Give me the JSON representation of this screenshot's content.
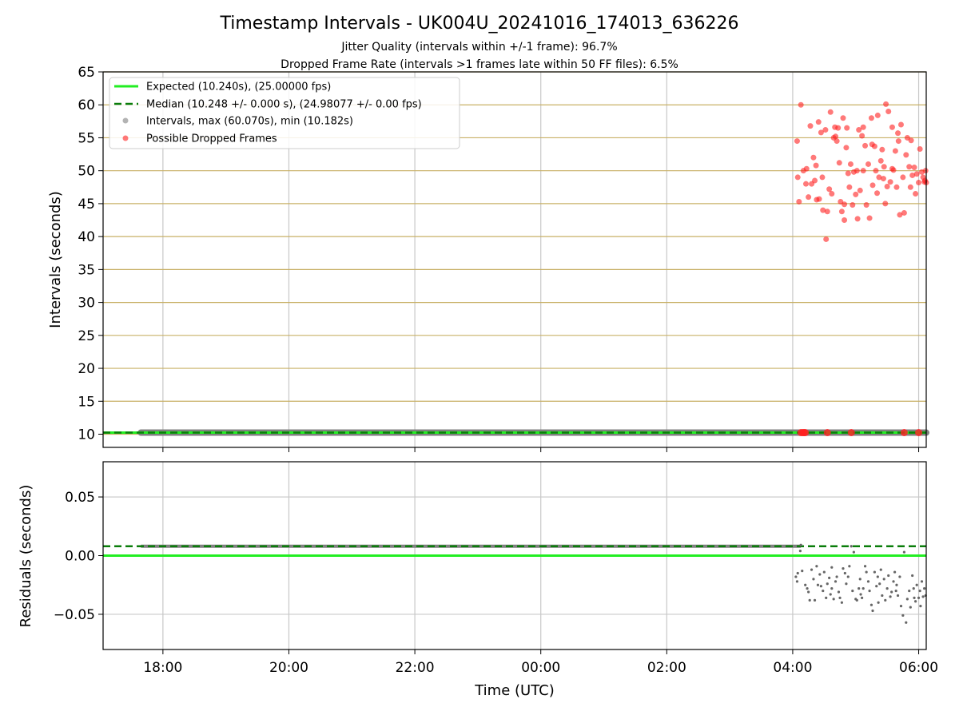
{
  "chart_data": {
    "title": "Timestamp Intervals - UK004U_20241016_174013_636226",
    "subtitle_1": "Jitter Quality (intervals within +/-1 frame): 96.7%",
    "subtitle_2": "Dropped Frame Rate (intervals >1 frames late within 50 FF files): 6.5%",
    "xlabel": "Time (UTC)",
    "x_ticks": [
      "18:00",
      "20:00",
      "22:00",
      "00:00",
      "02:00",
      "04:00",
      "06:00"
    ],
    "x_tick_hours": [
      18,
      20,
      22,
      24,
      26,
      28,
      30
    ],
    "xlim_hours": [
      17.05,
      30.12
    ],
    "colors": {
      "expected": "#22ee22",
      "median": "#0a7d0a",
      "intervals": "#808080",
      "dropped": "#ff2020",
      "hgrid_top": "#c8b066",
      "grid": "#c8c8c8"
    },
    "top": {
      "type": "scatter",
      "ylabel": "Intervals (seconds)",
      "ylim": [
        8,
        65
      ],
      "y_ticks": [
        10,
        15,
        20,
        25,
        30,
        35,
        40,
        45,
        50,
        55,
        60,
        65
      ],
      "expected": 10.24,
      "median": 10.248,
      "intervals_start_hours": 17.65,
      "intervals_end_hours": 30.12,
      "intervals_value": 10.24,
      "dropped_low_hours": [
        28.13,
        28.16,
        28.18,
        28.2,
        28.55,
        28.93,
        29.77,
        30.0
      ],
      "dropped_low_value": 10.24,
      "legend": {
        "placement": "upper-left",
        "items": [
          "Expected (10.240s), (25.00000 fps)",
          "Median (10.248 +/- 0.000 s), (24.98077 +/- 0.00 fps)",
          "Intervals, max (60.070s), min (10.182s)",
          "Possible Dropped Frames"
        ]
      },
      "dropped_points": [
        [
          28.07,
          54.5
        ],
        [
          28.08,
          49.0
        ],
        [
          28.1,
          45.3
        ],
        [
          28.13,
          60.0
        ],
        [
          28.17,
          50.0
        ],
        [
          28.22,
          50.3
        ],
        [
          28.25,
          46.0
        ],
        [
          28.28,
          56.8
        ],
        [
          28.3,
          48.0
        ],
        [
          28.33,
          52.0
        ],
        [
          28.35,
          48.5
        ],
        [
          28.37,
          50.8
        ],
        [
          28.38,
          45.6
        ],
        [
          28.42,
          45.7
        ],
        [
          28.45,
          55.8
        ],
        [
          28.47,
          49.0
        ],
        [
          28.48,
          44.0
        ],
        [
          28.52,
          56.2
        ],
        [
          28.55,
          43.8
        ],
        [
          28.58,
          47.2
        ],
        [
          28.6,
          58.9
        ],
        [
          28.62,
          46.5
        ],
        [
          28.65,
          55.0
        ],
        [
          28.67,
          56.6
        ],
        [
          28.7,
          54.5
        ],
        [
          28.72,
          56.5
        ],
        [
          28.74,
          51.2
        ],
        [
          28.76,
          45.3
        ],
        [
          28.78,
          43.8
        ],
        [
          28.8,
          58.0
        ],
        [
          28.82,
          42.5
        ],
        [
          28.85,
          53.5
        ],
        [
          28.86,
          56.5
        ],
        [
          28.88,
          49.6
        ],
        [
          28.9,
          47.5
        ],
        [
          28.92,
          51.0
        ],
        [
          28.95,
          44.8
        ],
        [
          28.97,
          49.8
        ],
        [
          29.0,
          46.4
        ],
        [
          29.02,
          50.0
        ],
        [
          29.05,
          56.2
        ],
        [
          29.07,
          47.0
        ],
        [
          29.1,
          55.3
        ],
        [
          29.12,
          50.0
        ],
        [
          29.15,
          53.8
        ],
        [
          29.17,
          44.8
        ],
        [
          29.2,
          51.0
        ],
        [
          29.22,
          42.8
        ],
        [
          29.25,
          58.0
        ],
        [
          29.27,
          47.8
        ],
        [
          29.3,
          53.7
        ],
        [
          29.32,
          50.0
        ],
        [
          29.34,
          46.6
        ],
        [
          29.37,
          49.0
        ],
        [
          29.4,
          51.5
        ],
        [
          29.42,
          53.2
        ],
        [
          29.45,
          50.6
        ],
        [
          29.47,
          45.0
        ],
        [
          29.5,
          47.6
        ],
        [
          29.52,
          59.0
        ],
        [
          29.55,
          48.3
        ],
        [
          29.58,
          56.6
        ],
        [
          29.6,
          50.1
        ],
        [
          29.63,
          53.0
        ],
        [
          29.65,
          47.5
        ],
        [
          29.68,
          54.5
        ],
        [
          29.7,
          43.3
        ],
        [
          29.72,
          57.0
        ],
        [
          29.75,
          49.0
        ],
        [
          29.77,
          43.6
        ],
        [
          29.8,
          52.4
        ],
        [
          29.82,
          55.0
        ],
        [
          29.85,
          50.6
        ],
        [
          29.87,
          47.5
        ],
        [
          29.9,
          49.3
        ],
        [
          29.93,
          50.5
        ],
        [
          29.95,
          46.5
        ],
        [
          29.97,
          49.5
        ],
        [
          30.0,
          48.2
        ],
        [
          30.02,
          53.3
        ],
        [
          30.05,
          49.8
        ],
        [
          30.07,
          49.0
        ],
        [
          30.09,
          48.3
        ],
        [
          30.11,
          50.0
        ],
        [
          30.1,
          48.5
        ],
        [
          30.12,
          48.2
        ],
        [
          29.35,
          58.4
        ],
        [
          28.53,
          39.6
        ],
        [
          28.68,
          55.2
        ],
        [
          29.12,
          56.6
        ],
        [
          29.48,
          60.1
        ],
        [
          29.67,
          55.7
        ],
        [
          28.21,
          48.0
        ],
        [
          28.41,
          57.4
        ],
        [
          29.26,
          54.0
        ],
        [
          29.58,
          50.3
        ],
        [
          29.88,
          54.6
        ],
        [
          28.82,
          44.9
        ],
        [
          29.03,
          42.7
        ],
        [
          29.44,
          48.8
        ]
      ]
    },
    "bottom": {
      "type": "scatter",
      "ylabel": "Residuals (seconds)",
      "ylim": [
        -0.08,
        0.08
      ],
      "y_ticks": [
        0.05,
        0.0,
        -0.05
      ],
      "y_tick_labels": [
        "0.05",
        "0.00",
        "−0.05"
      ],
      "expected": 0.0,
      "median": 0.008,
      "residual_band_start_hours": 17.65,
      "residual_band_end_hours": 28.13,
      "residual_band_value": 0.008,
      "residual_points": [
        [
          28.05,
          -0.018
        ],
        [
          28.07,
          -0.022
        ],
        [
          28.08,
          -0.015
        ],
        [
          28.12,
          0.004
        ],
        [
          28.13,
          0.009
        ],
        [
          28.15,
          -0.013
        ],
        [
          28.2,
          -0.025
        ],
        [
          28.23,
          -0.028
        ],
        [
          28.27,
          -0.038
        ],
        [
          28.3,
          -0.012
        ],
        [
          28.33,
          -0.02
        ],
        [
          28.35,
          -0.038
        ],
        [
          28.38,
          -0.009
        ],
        [
          28.4,
          -0.025
        ],
        [
          28.43,
          -0.016
        ],
        [
          28.45,
          -0.026
        ],
        [
          28.48,
          -0.03
        ],
        [
          28.5,
          -0.014
        ],
        [
          28.53,
          -0.036
        ],
        [
          28.55,
          -0.024
        ],
        [
          28.58,
          -0.019
        ],
        [
          28.6,
          -0.033
        ],
        [
          28.62,
          -0.028
        ],
        [
          28.65,
          -0.037
        ],
        [
          28.68,
          -0.022
        ],
        [
          28.7,
          -0.018
        ],
        [
          28.73,
          -0.031
        ],
        [
          28.75,
          -0.036
        ],
        [
          28.78,
          -0.04
        ],
        [
          28.8,
          -0.011
        ],
        [
          28.83,
          -0.015
        ],
        [
          28.85,
          -0.024
        ],
        [
          28.88,
          -0.018
        ],
        [
          28.9,
          -0.009
        ],
        [
          28.93,
          0.008
        ],
        [
          28.95,
          -0.03
        ],
        [
          28.97,
          0.003
        ],
        [
          29.0,
          -0.037
        ],
        [
          29.02,
          -0.038
        ],
        [
          29.05,
          -0.028
        ],
        [
          29.07,
          -0.02
        ],
        [
          29.1,
          -0.036
        ],
        [
          29.12,
          -0.028
        ],
        [
          29.15,
          -0.009
        ],
        [
          29.17,
          -0.014
        ],
        [
          29.2,
          -0.022
        ],
        [
          29.22,
          -0.03
        ],
        [
          29.25,
          -0.042
        ],
        [
          29.27,
          -0.047
        ],
        [
          29.3,
          -0.014
        ],
        [
          29.33,
          -0.026
        ],
        [
          29.35,
          -0.018
        ],
        [
          29.38,
          -0.024
        ],
        [
          29.4,
          -0.012
        ],
        [
          29.42,
          -0.034
        ],
        [
          29.45,
          -0.02
        ],
        [
          29.47,
          -0.038
        ],
        [
          29.5,
          -0.028
        ],
        [
          29.52,
          -0.017
        ],
        [
          29.55,
          -0.035
        ],
        [
          29.57,
          -0.031
        ],
        [
          29.6,
          -0.022
        ],
        [
          29.62,
          -0.014
        ],
        [
          29.65,
          -0.025
        ],
        [
          29.67,
          -0.034
        ],
        [
          29.7,
          -0.018
        ],
        [
          29.72,
          -0.043
        ],
        [
          29.75,
          -0.051
        ],
        [
          29.77,
          0.003
        ],
        [
          29.8,
          -0.057
        ],
        [
          29.82,
          -0.037
        ],
        [
          29.85,
          -0.03
        ],
        [
          29.87,
          -0.044
        ],
        [
          29.9,
          -0.017
        ],
        [
          29.93,
          -0.036
        ],
        [
          29.95,
          -0.039
        ],
        [
          29.97,
          -0.025
        ],
        [
          30.0,
          -0.036
        ],
        [
          30.02,
          -0.03
        ],
        [
          30.05,
          -0.022
        ],
        [
          30.07,
          -0.035
        ],
        [
          30.09,
          -0.028
        ],
        [
          30.11,
          -0.034
        ],
        [
          28.25,
          -0.031
        ],
        [
          28.62,
          -0.01
        ],
        [
          29.08,
          -0.033
        ],
        [
          29.36,
          -0.04
        ],
        [
          29.64,
          -0.03
        ],
        [
          29.92,
          -0.028
        ],
        [
          30.03,
          -0.043
        ]
      ]
    }
  }
}
